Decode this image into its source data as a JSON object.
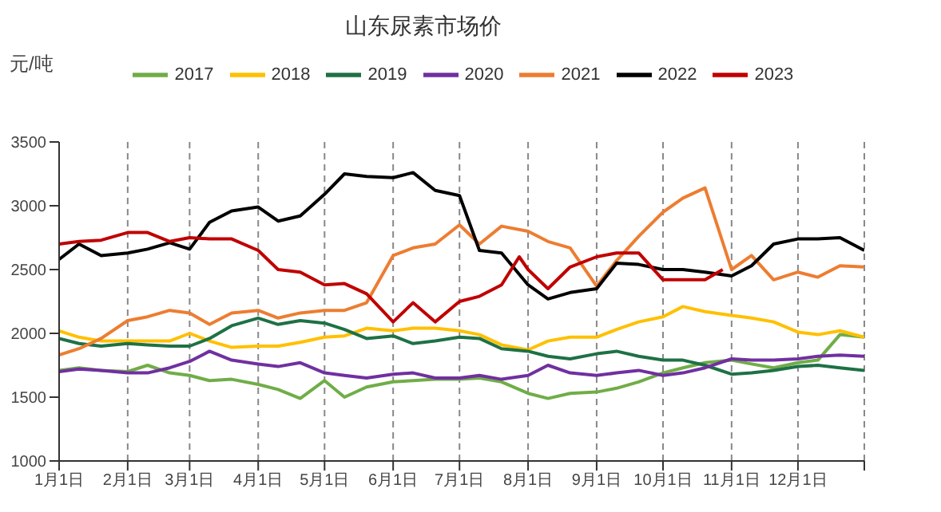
{
  "chart_data": {
    "type": "line",
    "title": "山东尿素市场价",
    "ylabel": "元/吨",
    "legend": "top",
    "grid": "x",
    "x": [
      "--01-01",
      "--01-10",
      "--01-20",
      "--02-01",
      "--02-10",
      "--02-20",
      "--03-01",
      "--03-10",
      "--03-20",
      "--04-01",
      "--04-10",
      "--04-20",
      "--05-01",
      "--05-10",
      "--05-20",
      "--06-01",
      "--06-10",
      "--06-20",
      "--07-01",
      "--07-10",
      "--07-20",
      "--08-01",
      "--08-10",
      "--08-20",
      "--09-01",
      "--09-10",
      "--09-20",
      "--10-01",
      "--10-10",
      "--10-20",
      "--11-01",
      "--11-10",
      "--11-20",
      "--12-01",
      "--12-10",
      "--12-20",
      "--12-31"
    ],
    "xlim": [
      "--01-01",
      "--12-31"
    ],
    "xticks": [
      {
        "value": "--01-01",
        "label": "1月1日"
      },
      {
        "value": "--02-01",
        "label": "2月1日"
      },
      {
        "value": "--03-01",
        "label": "3月1日"
      },
      {
        "value": "--04-01",
        "label": "4月1日"
      },
      {
        "value": "--05-01",
        "label": "5月1日"
      },
      {
        "value": "--06-01",
        "label": "6月1日"
      },
      {
        "value": "--07-01",
        "label": "7月1日"
      },
      {
        "value": "--08-01",
        "label": "8月1日"
      },
      {
        "value": "--09-01",
        "label": "9月1日"
      },
      {
        "value": "--10-01",
        "label": "10月1日"
      },
      {
        "value": "--11-01",
        "label": "11月1日"
      },
      {
        "value": "--12-01",
        "label": "12月1日"
      },
      {
        "value": "--12-31",
        "label": null
      }
    ],
    "ylim": [
      1000,
      3500
    ],
    "yticks": [
      1000,
      1500,
      2000,
      2500,
      3000,
      3500
    ],
    "series": [
      {
        "name": "2017",
        "color": "#70ad47",
        "values": [
          1710,
          1730,
          1710,
          1700,
          1750,
          1690,
          1670,
          1630,
          1640,
          1600,
          1560,
          1490,
          1630,
          1500,
          1580,
          1620,
          1630,
          1640,
          1640,
          1650,
          1620,
          1530,
          1490,
          1530,
          1540,
          1570,
          1620,
          1690,
          1730,
          1770,
          1790,
          1760,
          1730,
          1770,
          1790,
          1990,
          1970
        ]
      },
      {
        "name": "2018",
        "color": "#ffc000",
        "values": [
          2020,
          1970,
          1940,
          1940,
          1940,
          1940,
          2000,
          1940,
          1890,
          1900,
          1900,
          1930,
          1970,
          1980,
          2040,
          2020,
          2040,
          2040,
          2020,
          1990,
          1910,
          1870,
          1940,
          1970,
          1970,
          2030,
          2090,
          2130,
          2210,
          2170,
          2140,
          2120,
          2090,
          2010,
          1990,
          2020,
          1970
        ]
      },
      {
        "name": "2019",
        "color": "#1e7145",
        "values": [
          1960,
          1920,
          1900,
          1920,
          1910,
          1900,
          1900,
          1960,
          2060,
          2120,
          2070,
          2100,
          2080,
          2030,
          1960,
          1980,
          1920,
          1940,
          1970,
          1960,
          1880,
          1860,
          1820,
          1800,
          1840,
          1860,
          1820,
          1790,
          1790,
          1750,
          1680,
          1690,
          1710,
          1740,
          1750,
          1730,
          1710
        ]
      },
      {
        "name": "2020",
        "color": "#7030a0",
        "values": [
          1700,
          1720,
          1710,
          1690,
          1690,
          1730,
          1780,
          1860,
          1790,
          1760,
          1740,
          1770,
          1690,
          1670,
          1650,
          1680,
          1690,
          1650,
          1650,
          1670,
          1640,
          1670,
          1750,
          1690,
          1670,
          1690,
          1710,
          1670,
          1690,
          1730,
          1800,
          1790,
          1790,
          1800,
          1820,
          1830,
          1820
        ]
      },
      {
        "name": "2021",
        "color": "#ed7d31",
        "values": [
          1830,
          1880,
          1960,
          2100,
          2130,
          2180,
          2160,
          2070,
          2160,
          2180,
          2120,
          2160,
          2180,
          2180,
          2240,
          2610,
          2670,
          2700,
          2850,
          2700,
          2840,
          2800,
          2720,
          2670,
          2370,
          2570,
          2760,
          2950,
          3060,
          3140,
          2500,
          2610,
          2420,
          2480,
          2440,
          2530,
          2520
        ]
      },
      {
        "name": "2022",
        "color": "#000000",
        "values": [
          2580,
          2700,
          2610,
          2630,
          2660,
          2710,
          2660,
          2870,
          2960,
          2990,
          2880,
          2920,
          3090,
          3250,
          3230,
          3220,
          3260,
          3120,
          3080,
          2650,
          2630,
          2380,
          2270,
          2320,
          2350,
          2550,
          2540,
          2500,
          2500,
          2480,
          2450,
          2530,
          2700,
          2740,
          2740,
          2750,
          2650
        ]
      },
      {
        "name": "2023",
        "color": "#c00000",
        "x": [
          "--01-01",
          "--01-10",
          "--01-20",
          "--02-01",
          "--02-10",
          "--02-20",
          "--03-01",
          "--03-10",
          "--03-20",
          "--04-01",
          "--04-10",
          "--04-20",
          "--05-01",
          "--05-10",
          "--05-20",
          "--06-01",
          "--06-10",
          "--06-20",
          "--07-01",
          "--07-10",
          "--07-20",
          "--07-28",
          "--08-01",
          "--08-10",
          "--08-20",
          "--09-01",
          "--09-10",
          "--09-20",
          "--10-01",
          "--10-10",
          "--10-20",
          "--10-28"
        ],
        "values": [
          2700,
          2720,
          2730,
          2790,
          2790,
          2720,
          2750,
          2740,
          2740,
          2650,
          2500,
          2480,
          2380,
          2390,
          2310,
          2090,
          2240,
          2090,
          2250,
          2290,
          2380,
          2600,
          2500,
          2350,
          2520,
          2600,
          2630,
          2630,
          2420,
          2420,
          2420,
          2500
        ]
      }
    ]
  }
}
